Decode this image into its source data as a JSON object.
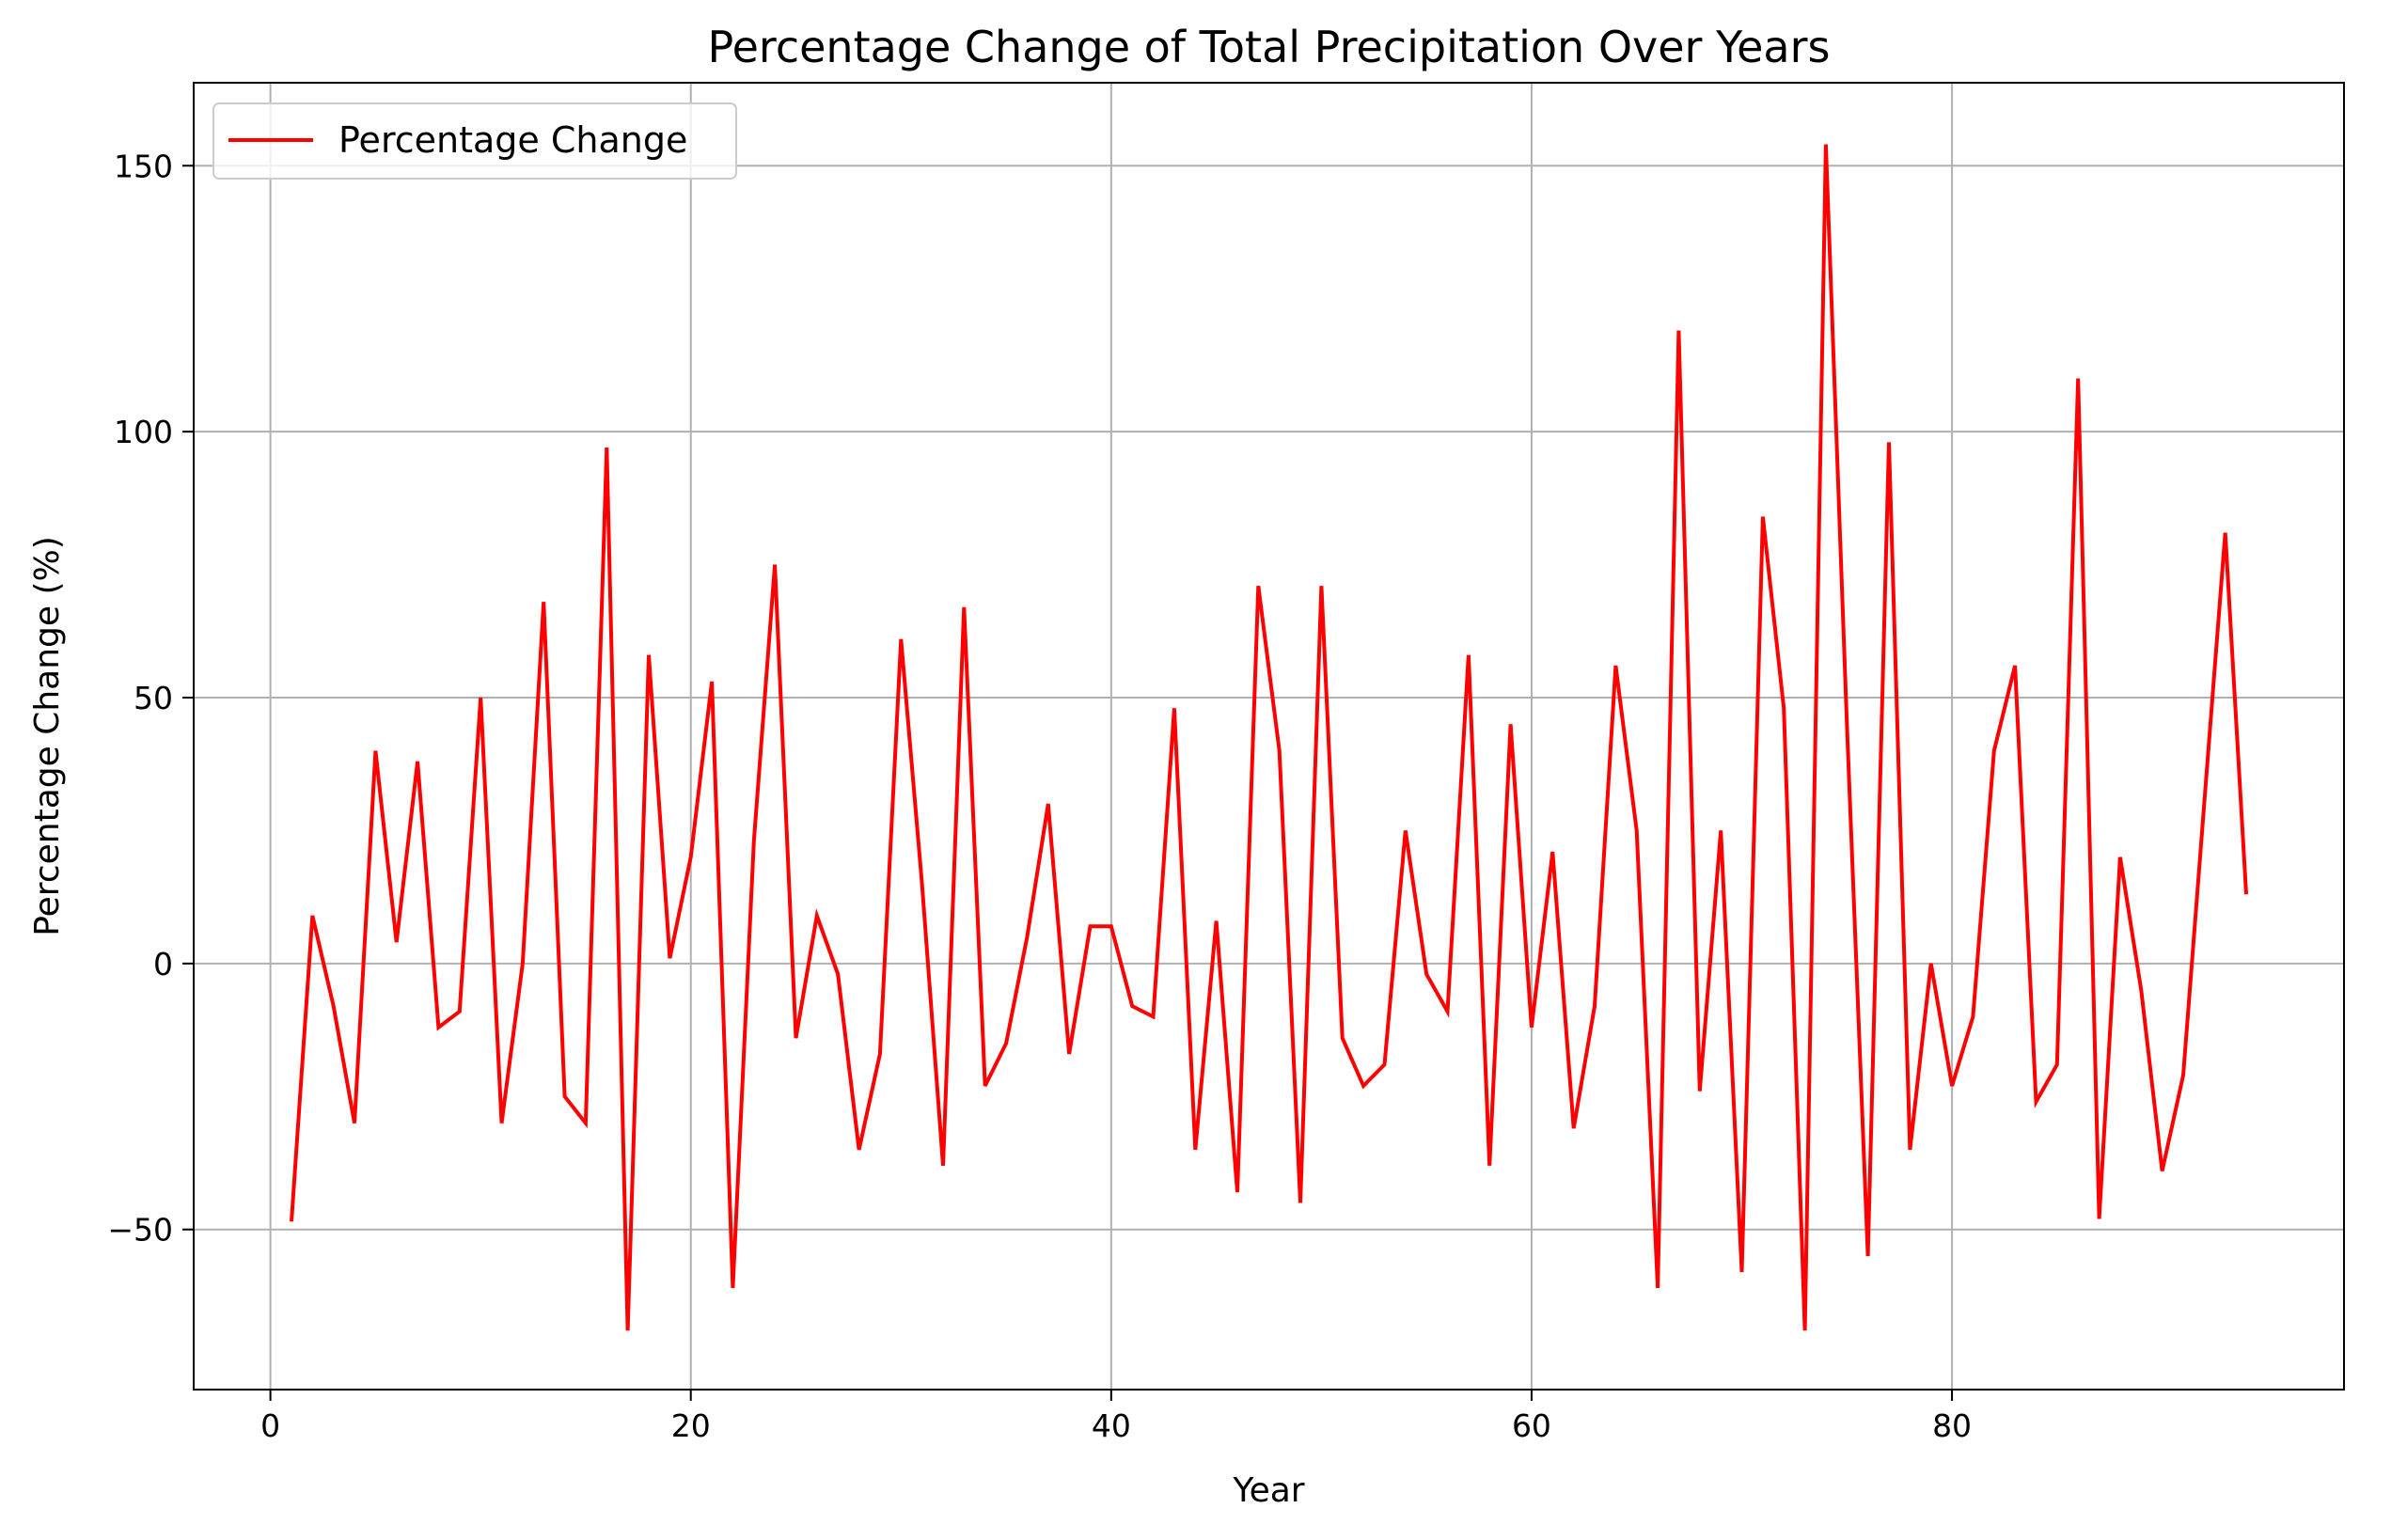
{
  "chart_data": {
    "type": "line",
    "title": "Percentage Change of Total Precipitation Over Years",
    "xlabel": "Year",
    "ylabel": "Percentage Change (%)",
    "xlim": [
      -3.65,
      98.65
    ],
    "ylim": [
      -80.1,
      165.6
    ],
    "xticks": [
      0,
      20,
      40,
      60,
      80
    ],
    "xtick_labels": [
      "0",
      "20",
      "40",
      "60",
      "80"
    ],
    "yticks": [
      -50,
      0,
      50,
      100,
      150
    ],
    "ytick_labels": [
      "−50",
      "0",
      "50",
      "100",
      "150"
    ],
    "grid": true,
    "legend_position": "upper-left",
    "series": [
      {
        "name": "Percentage Change",
        "color": "#ff0000",
        "x": [
          1,
          2,
          3,
          4,
          5,
          6,
          7,
          8,
          9,
          10,
          11,
          12,
          13,
          14,
          15,
          16,
          17,
          18,
          19,
          20,
          21,
          22,
          23,
          24,
          25,
          26,
          27,
          28,
          29,
          30,
          31,
          32,
          33,
          34,
          35,
          36,
          37,
          38,
          39,
          40,
          41,
          42,
          43,
          44,
          45,
          46,
          47,
          48,
          49,
          50,
          51,
          52,
          53,
          54,
          55,
          56,
          57,
          58,
          59,
          60,
          61,
          62,
          63,
          64,
          65,
          66,
          67,
          68,
          69,
          70,
          71,
          72,
          73,
          74,
          75,
          76,
          77,
          78,
          79,
          80,
          81,
          82,
          83,
          84,
          85,
          86,
          87,
          88,
          89,
          90,
          91,
          92,
          93,
          94
        ],
        "values": [
          -48.5,
          9,
          -8,
          -30,
          40,
          4,
          38,
          -12,
          -9,
          50,
          -30,
          0,
          68,
          -25,
          -30,
          97,
          -69,
          58,
          1,
          20,
          53,
          -61,
          23,
          75,
          -14,
          9,
          -2,
          -35,
          -17,
          61,
          15,
          -38,
          67,
          -23,
          -15,
          5,
          30,
          -17,
          7,
          7,
          -8,
          -10,
          48,
          -35,
          8,
          -43,
          71,
          40,
          -45,
          71,
          -14,
          -23,
          -19,
          25,
          -2,
          -9,
          58,
          -38,
          45,
          -12,
          21,
          -31,
          -8,
          56,
          25,
          -61,
          119,
          -24,
          25,
          -58,
          84,
          48,
          -69,
          154,
          45,
          -55,
          98,
          -35,
          0,
          -23,
          -10,
          40,
          56,
          -26,
          -19,
          110,
          -48,
          20,
          -5,
          -39,
          -21,
          30,
          81,
          13
        ]
      }
    ]
  }
}
